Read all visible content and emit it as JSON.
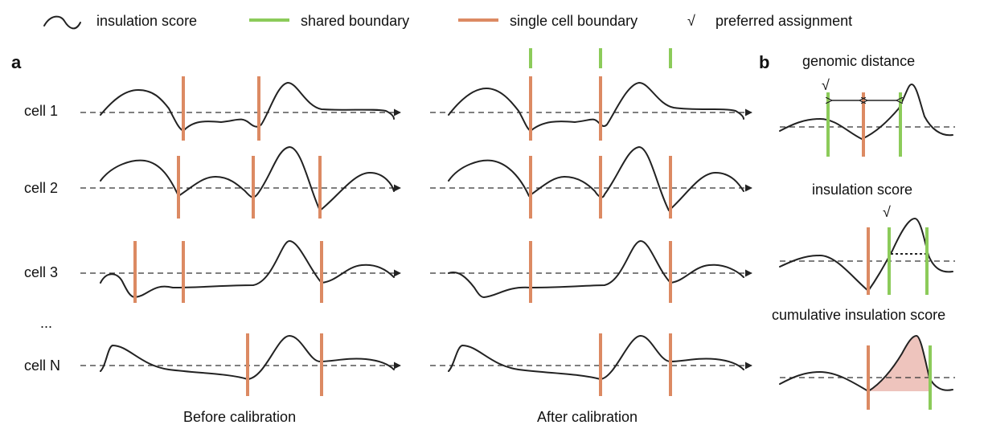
{
  "legend": {
    "insulation": "insulation score",
    "shared": "shared boundary",
    "single": "single cell boundary",
    "check_symbol": "√",
    "preferred": "preferred assignment"
  },
  "panels": {
    "a": "a",
    "b": "b"
  },
  "cells": [
    "cell 1",
    "cell 2",
    "cell 3",
    "...",
    "cell N"
  ],
  "captions": {
    "before": "Before calibration",
    "after": "After calibration"
  },
  "panel_b": {
    "genomic": "genomic distance",
    "insulation": "insulation score",
    "cumulative": "cumulative insulation score"
  },
  "colors": {
    "shared": "#8CCB5A",
    "single": "#DC8A63",
    "curve": "#222222",
    "fill": "#EEC4BD"
  }
}
